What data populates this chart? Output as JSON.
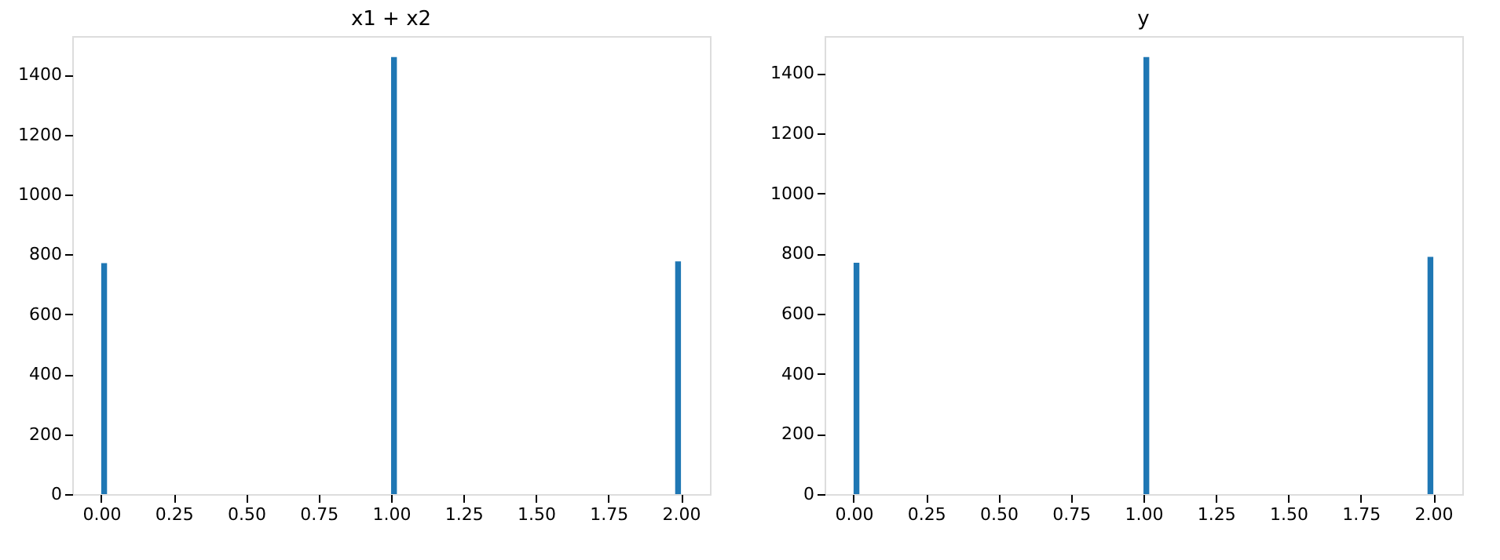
{
  "chart_data": [
    {
      "type": "histogram",
      "title": "x1 + x2",
      "bins": [
        0,
        0.02,
        1.0,
        1.02,
        1.98,
        2.0
      ],
      "values": [
        771,
        0,
        1459,
        0,
        777
      ],
      "color": "#1f77b4",
      "xlim": [
        -0.1,
        2.1
      ],
      "xticks": [
        {
          "value": 0,
          "label": "0.00"
        },
        0.25,
        {
          "value": 0.5,
          "label": "0.50"
        },
        0.75,
        {
          "value": 1,
          "label": "1.00"
        },
        1.25,
        {
          "value": 1.5,
          "label": "1.50"
        },
        1.75,
        {
          "value": 2,
          "label": "2.00"
        }
      ],
      "ylim": [
        0,
        1529
      ],
      "yticks": [
        0,
        200,
        400,
        600,
        800,
        1000,
        1200,
        1400
      ],
      "grid": false
    },
    {
      "type": "histogram",
      "title": "y",
      "bins": [
        0,
        0.02,
        1.0,
        1.02,
        1.98,
        2.0
      ],
      "values": [
        769,
        0,
        1453,
        0,
        789
      ],
      "color": "#1f77b4",
      "xlim": [
        -0.1,
        2.1
      ],
      "xticks": [
        {
          "value": 0,
          "label": "0.00"
        },
        0.25,
        {
          "value": 0.5,
          "label": "0.50"
        },
        0.75,
        {
          "value": 1,
          "label": "1.00"
        },
        1.25,
        {
          "value": 1.5,
          "label": "1.50"
        },
        1.75,
        {
          "value": 2,
          "label": "2.00"
        }
      ],
      "ylim": [
        0,
        1523
      ],
      "yticks": [
        0,
        200,
        400,
        600,
        800,
        1000,
        1200,
        1400
      ],
      "grid": false
    }
  ]
}
